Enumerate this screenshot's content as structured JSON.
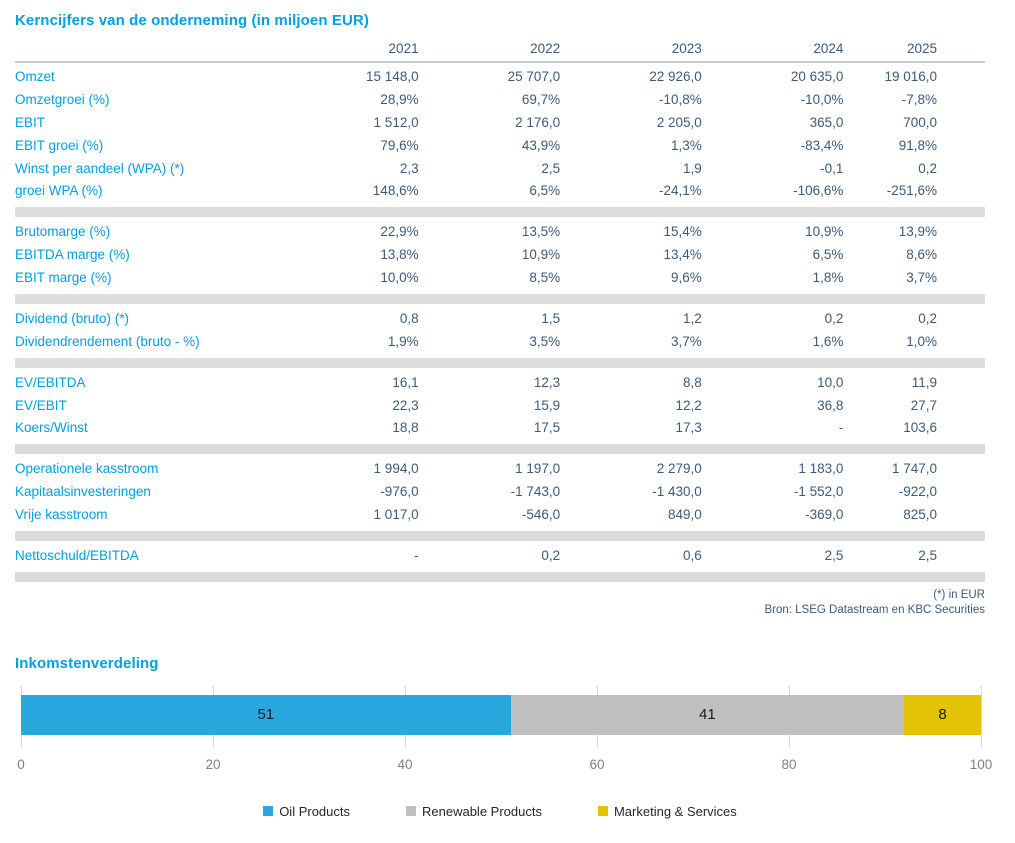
{
  "table": {
    "title": "Kerncijfers van de onderneming (in miljoen EUR)",
    "years": [
      "2021",
      "2022",
      "2023",
      "2024",
      "2025"
    ],
    "sections": [
      {
        "rows": [
          {
            "label": "Omzet",
            "values": [
              "15 148,0",
              "25 707,0",
              "22 926,0",
              "20 635,0",
              "19 016,0"
            ]
          },
          {
            "label": "Omzetgroei (%)",
            "values": [
              "28,9%",
              "69,7%",
              "-10,8%",
              "-10,0%",
              "-7,8%"
            ]
          },
          {
            "label": "EBIT",
            "values": [
              "1 512,0",
              "2 176,0",
              "2 205,0",
              "365,0",
              "700,0"
            ]
          },
          {
            "label": "EBIT groei (%)",
            "values": [
              "79,6%",
              "43,9%",
              "1,3%",
              "-83,4%",
              "91,8%"
            ]
          },
          {
            "label": "Winst per aandeel (WPA) (*)",
            "values": [
              "2,3",
              "2,5",
              "1,9",
              "-0,1",
              "0,2"
            ]
          },
          {
            "label": "groei WPA (%)",
            "values": [
              "148,6%",
              "6,5%",
              "-24,1%",
              "-106,6%",
              "-251,6%"
            ]
          }
        ]
      },
      {
        "rows": [
          {
            "label": "Brutomarge (%)",
            "values": [
              "22,9%",
              "13,5%",
              "15,4%",
              "10,9%",
              "13,9%"
            ]
          },
          {
            "label": "EBITDA marge (%)",
            "values": [
              "13,8%",
              "10,9%",
              "13,4%",
              "6,5%",
              "8,6%"
            ]
          },
          {
            "label": "EBIT marge (%)",
            "values": [
              "10,0%",
              "8,5%",
              "9,6%",
              "1,8%",
              "3,7%"
            ]
          }
        ]
      },
      {
        "rows": [
          {
            "label": "Dividend (bruto) (*)",
            "values": [
              "0,8",
              "1,5",
              "1,2",
              "0,2",
              "0,2"
            ]
          },
          {
            "label": "Dividendrendement (bruto - %)",
            "values": [
              "1,9%",
              "3,5%",
              "3,7%",
              "1,6%",
              "1,0%"
            ]
          }
        ]
      },
      {
        "rows": [
          {
            "label": "EV/EBITDA",
            "values": [
              "16,1",
              "12,3",
              "8,8",
              "10,0",
              "11,9"
            ]
          },
          {
            "label": "EV/EBIT",
            "values": [
              "22,3",
              "15,9",
              "12,2",
              "36,8",
              "27,7"
            ]
          },
          {
            "label": "Koers/Winst",
            "values": [
              "18,8",
              "17,5",
              "17,3",
              "-",
              "103,6"
            ]
          }
        ]
      },
      {
        "rows": [
          {
            "label": "Operationele kasstroom",
            "values": [
              "1 994,0",
              "1 197,0",
              "2 279,0",
              "1 183,0",
              "1 747,0"
            ]
          },
          {
            "label": "Kapitaalsinvesteringen",
            "values": [
              "-976,0",
              "-1 743,0",
              "-1 430,0",
              "-1 552,0",
              "-922,0"
            ]
          },
          {
            "label": "Vrije kasstroom",
            "values": [
              "1 017,0",
              "-546,0",
              "849,0",
              "-369,0",
              "825,0"
            ]
          }
        ]
      },
      {
        "rows": [
          {
            "label": "Nettoschuld/EBITDA",
            "values": [
              "-",
              "0,2",
              "0,6",
              "2,5",
              "2,5"
            ]
          }
        ]
      }
    ],
    "footnotes": [
      "(*) in EUR",
      "Bron: LSEG Datastream en KBC Securities"
    ]
  },
  "chart_data": {
    "type": "bar",
    "variant": "horizontal-stacked",
    "title": "Inkomstenverdeling",
    "series": [
      {
        "name": "Oil Products",
        "value": 51,
        "color": "#29a8df"
      },
      {
        "name": "Renewable Products",
        "value": 41,
        "color": "#bfbfbf"
      },
      {
        "name": "Marketing & Services",
        "value": 8,
        "color": "#e3c404"
      }
    ],
    "xlim": [
      0,
      100
    ],
    "xticks": [
      0,
      20,
      40,
      60,
      80,
      100
    ],
    "grid": true,
    "legend_position": "bottom"
  },
  "colors": {
    "accent_blue": "#00a0e1",
    "value_text": "#3d5a78",
    "section_band": "#dcdcdc",
    "gridline": "#d9d9d9",
    "tick_text": "#7f7f7f"
  }
}
